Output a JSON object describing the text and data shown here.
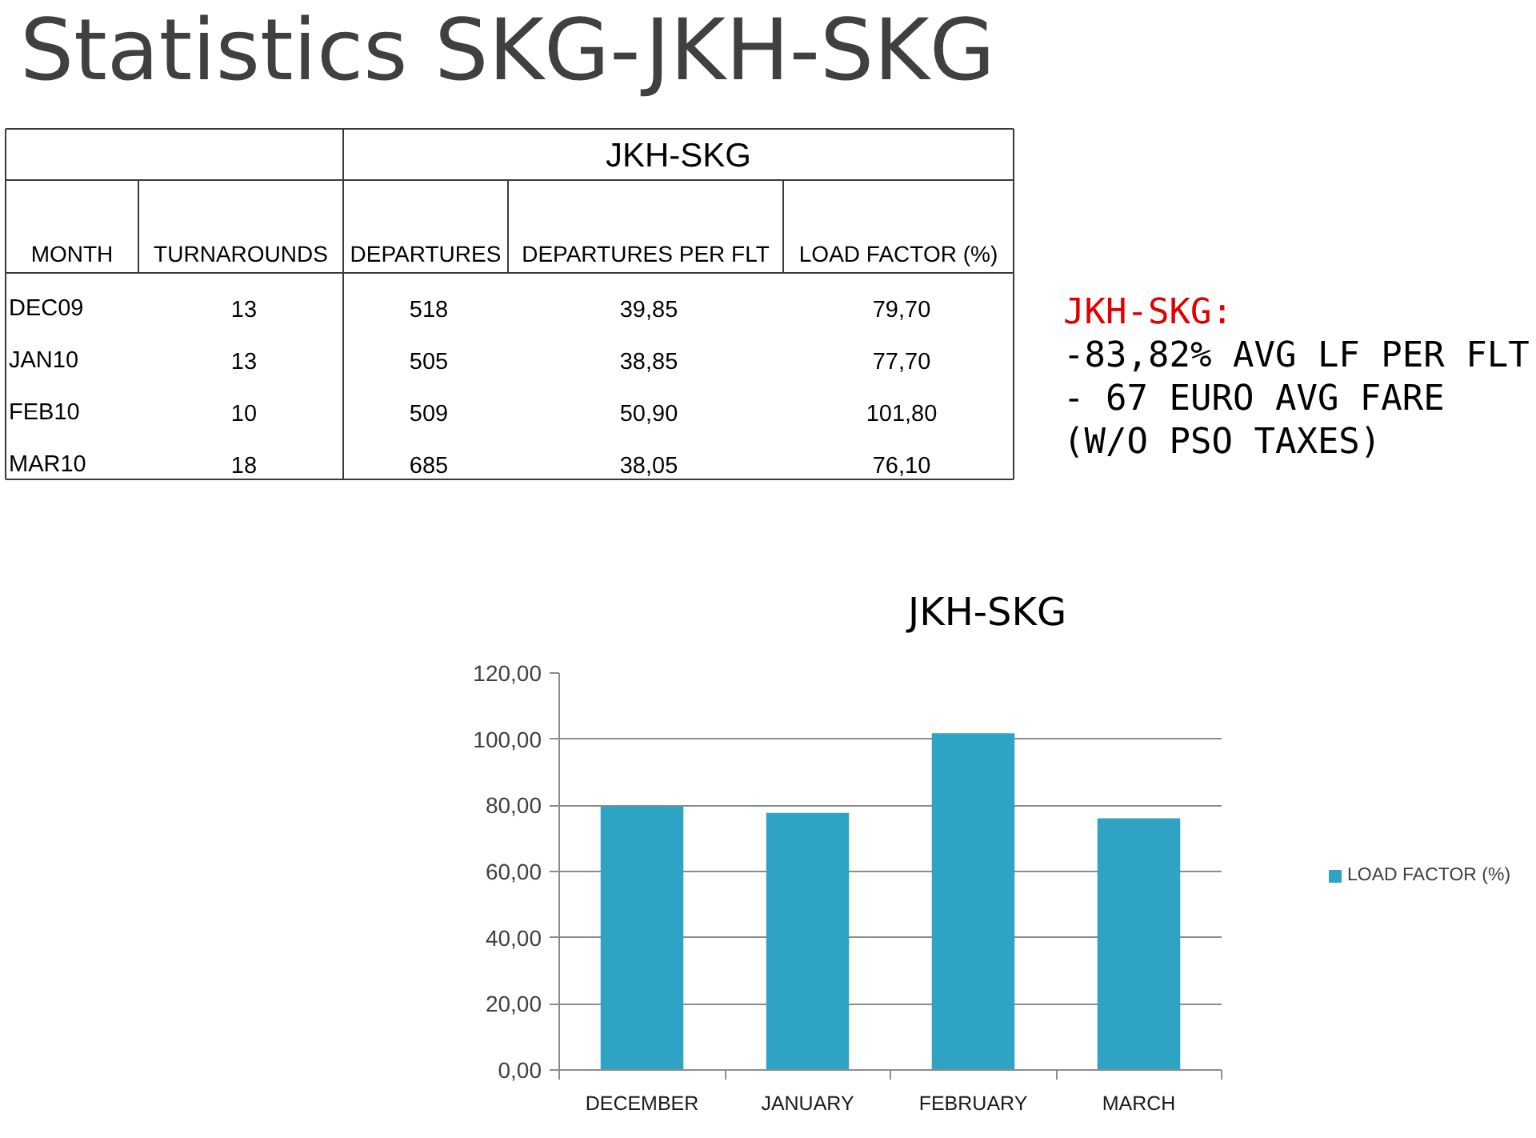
{
  "chart_data": [
    {
      "type": "other",
      "title": "Statistics SKG-JKH-SKG",
      "subtitle": "JKH-SKG",
      "ylabel": "MONTH",
      "categories": [
        "TURNAROUNDS",
        "DEPARTURES",
        "DEPARTURES PER FLT",
        "LOAD FACTOR (%)"
      ],
      "y_categories": [
        "DEC09",
        "JAN10",
        "FEB10",
        "MAR10"
      ],
      "cell_labels": [
        [
          "13",
          "518",
          "39,85",
          "79,70"
        ],
        [
          "13",
          "505",
          "38,85",
          "77,70"
        ],
        [
          "10",
          "509",
          "50,90",
          "101,80"
        ],
        [
          "18",
          "685",
          "38,05",
          "76,10"
        ]
      ],
      "annotations": [
        "JKH-SKG:",
        "-83,82% AVG LF PER FLT",
        "- 67 EURO AVG FARE",
        "(W/O PSO TAXES)"
      ]
    },
    {
      "type": "bar",
      "title": "JKH-SKG",
      "categories": [
        "DECEMBER",
        "JANUARY",
        "FEBRUARY",
        "MARCH"
      ],
      "series": [
        {
          "name": "LOAD FACTOR (%)",
          "color": "#2fa3c3",
          "values": [
            79.7,
            77.7,
            101.8,
            76.1
          ]
        }
      ],
      "ylim": [
        0,
        120
      ],
      "yticks": [
        {
          "value": 0,
          "label": "0,00"
        },
        {
          "value": 20,
          "label": "20,00"
        },
        {
          "value": 40,
          "label": "40,00"
        },
        {
          "value": 60,
          "label": "60,00"
        },
        {
          "value": 80,
          "label": "80,00"
        },
        {
          "value": 100,
          "label": "100,00"
        },
        {
          "value": 120,
          "label": "120,00"
        }
      ],
      "grid": "y",
      "legend": "right"
    }
  ]
}
